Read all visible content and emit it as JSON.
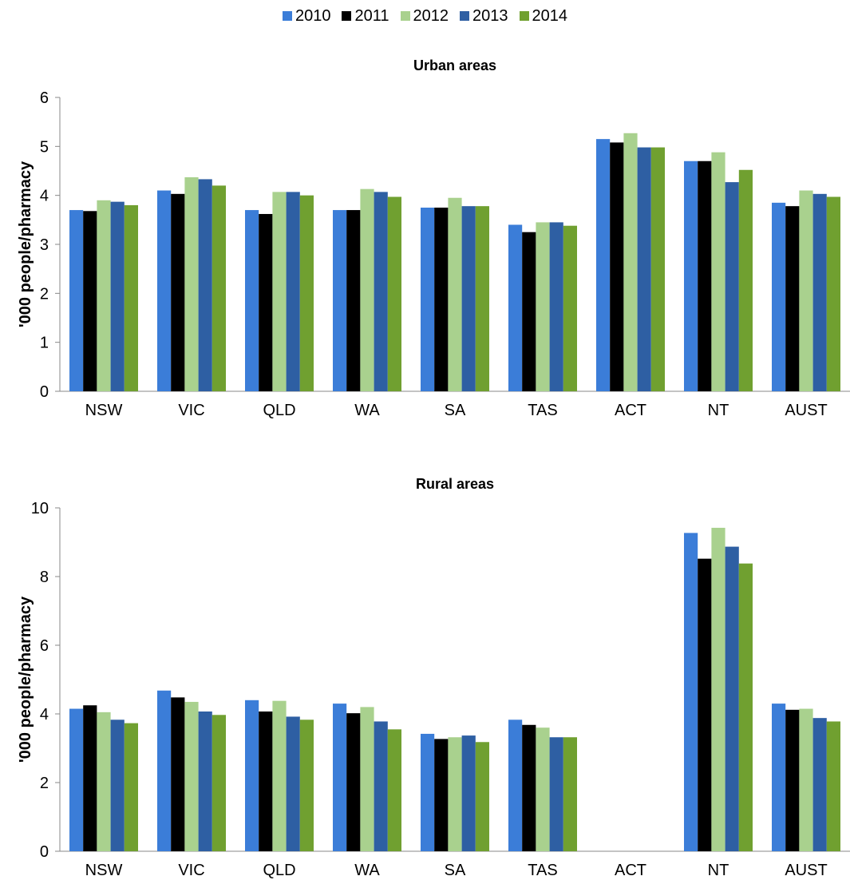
{
  "legend": {
    "series": [
      {
        "name": "2010",
        "color": "#3b7dd8"
      },
      {
        "name": "2011",
        "color": "#000000"
      },
      {
        "name": "2012",
        "color": "#a9d18e"
      },
      {
        "name": "2013",
        "color": "#2e5fa3"
      },
      {
        "name": "2014",
        "color": "#70a030"
      }
    ]
  },
  "chart_data": [
    {
      "type": "bar",
      "title": "Urban areas",
      "ylabel": "'000 people/pharmacy",
      "xlabel": "",
      "ylim": [
        0,
        6
      ],
      "yticks": [
        0,
        1,
        2,
        3,
        4,
        5,
        6
      ],
      "categories": [
        "NSW",
        "VIC",
        "QLD",
        "WA",
        "SA",
        "TAS",
        "ACT",
        "NT",
        "AUST"
      ],
      "grid": false,
      "legend_position": "top",
      "series": [
        {
          "name": "2010",
          "values": [
            3.7,
            4.1,
            3.7,
            3.7,
            3.75,
            3.4,
            5.15,
            4.7,
            3.85
          ]
        },
        {
          "name": "2011",
          "values": [
            3.68,
            4.03,
            3.62,
            3.7,
            3.75,
            3.25,
            5.08,
            4.7,
            3.78
          ]
        },
        {
          "name": "2012",
          "values": [
            3.9,
            4.37,
            4.07,
            4.13,
            3.95,
            3.45,
            5.27,
            4.88,
            4.1
          ]
        },
        {
          "name": "2013",
          "values": [
            3.87,
            4.33,
            4.07,
            4.07,
            3.78,
            3.45,
            4.98,
            4.27,
            4.03
          ]
        },
        {
          "name": "2014",
          "values": [
            3.8,
            4.2,
            4.0,
            3.97,
            3.78,
            3.38,
            4.98,
            4.52,
            3.97
          ]
        }
      ]
    },
    {
      "type": "bar",
      "title": "Rural areas",
      "ylabel": "'000 people/pharmacy",
      "xlabel": "",
      "ylim": [
        0,
        10
      ],
      "yticks": [
        0,
        2,
        4,
        6,
        8,
        10
      ],
      "categories": [
        "NSW",
        "VIC",
        "QLD",
        "WA",
        "SA",
        "TAS",
        "ACT",
        "NT",
        "AUST"
      ],
      "grid": false,
      "legend_position": "top",
      "series": [
        {
          "name": "2010",
          "values": [
            4.15,
            4.68,
            4.4,
            4.3,
            3.42,
            3.83,
            0,
            9.27,
            4.3
          ]
        },
        {
          "name": "2011",
          "values": [
            4.25,
            4.48,
            4.07,
            4.02,
            3.27,
            3.68,
            0,
            8.52,
            4.12
          ]
        },
        {
          "name": "2012",
          "values": [
            4.05,
            4.35,
            4.38,
            4.2,
            3.32,
            3.6,
            0,
            9.42,
            4.15
          ]
        },
        {
          "name": "2013",
          "values": [
            3.83,
            4.07,
            3.92,
            3.78,
            3.37,
            3.32,
            0,
            8.87,
            3.88
          ]
        },
        {
          "name": "2014",
          "values": [
            3.73,
            3.97,
            3.83,
            3.55,
            3.18,
            3.32,
            0,
            8.38,
            3.78
          ]
        }
      ]
    }
  ]
}
